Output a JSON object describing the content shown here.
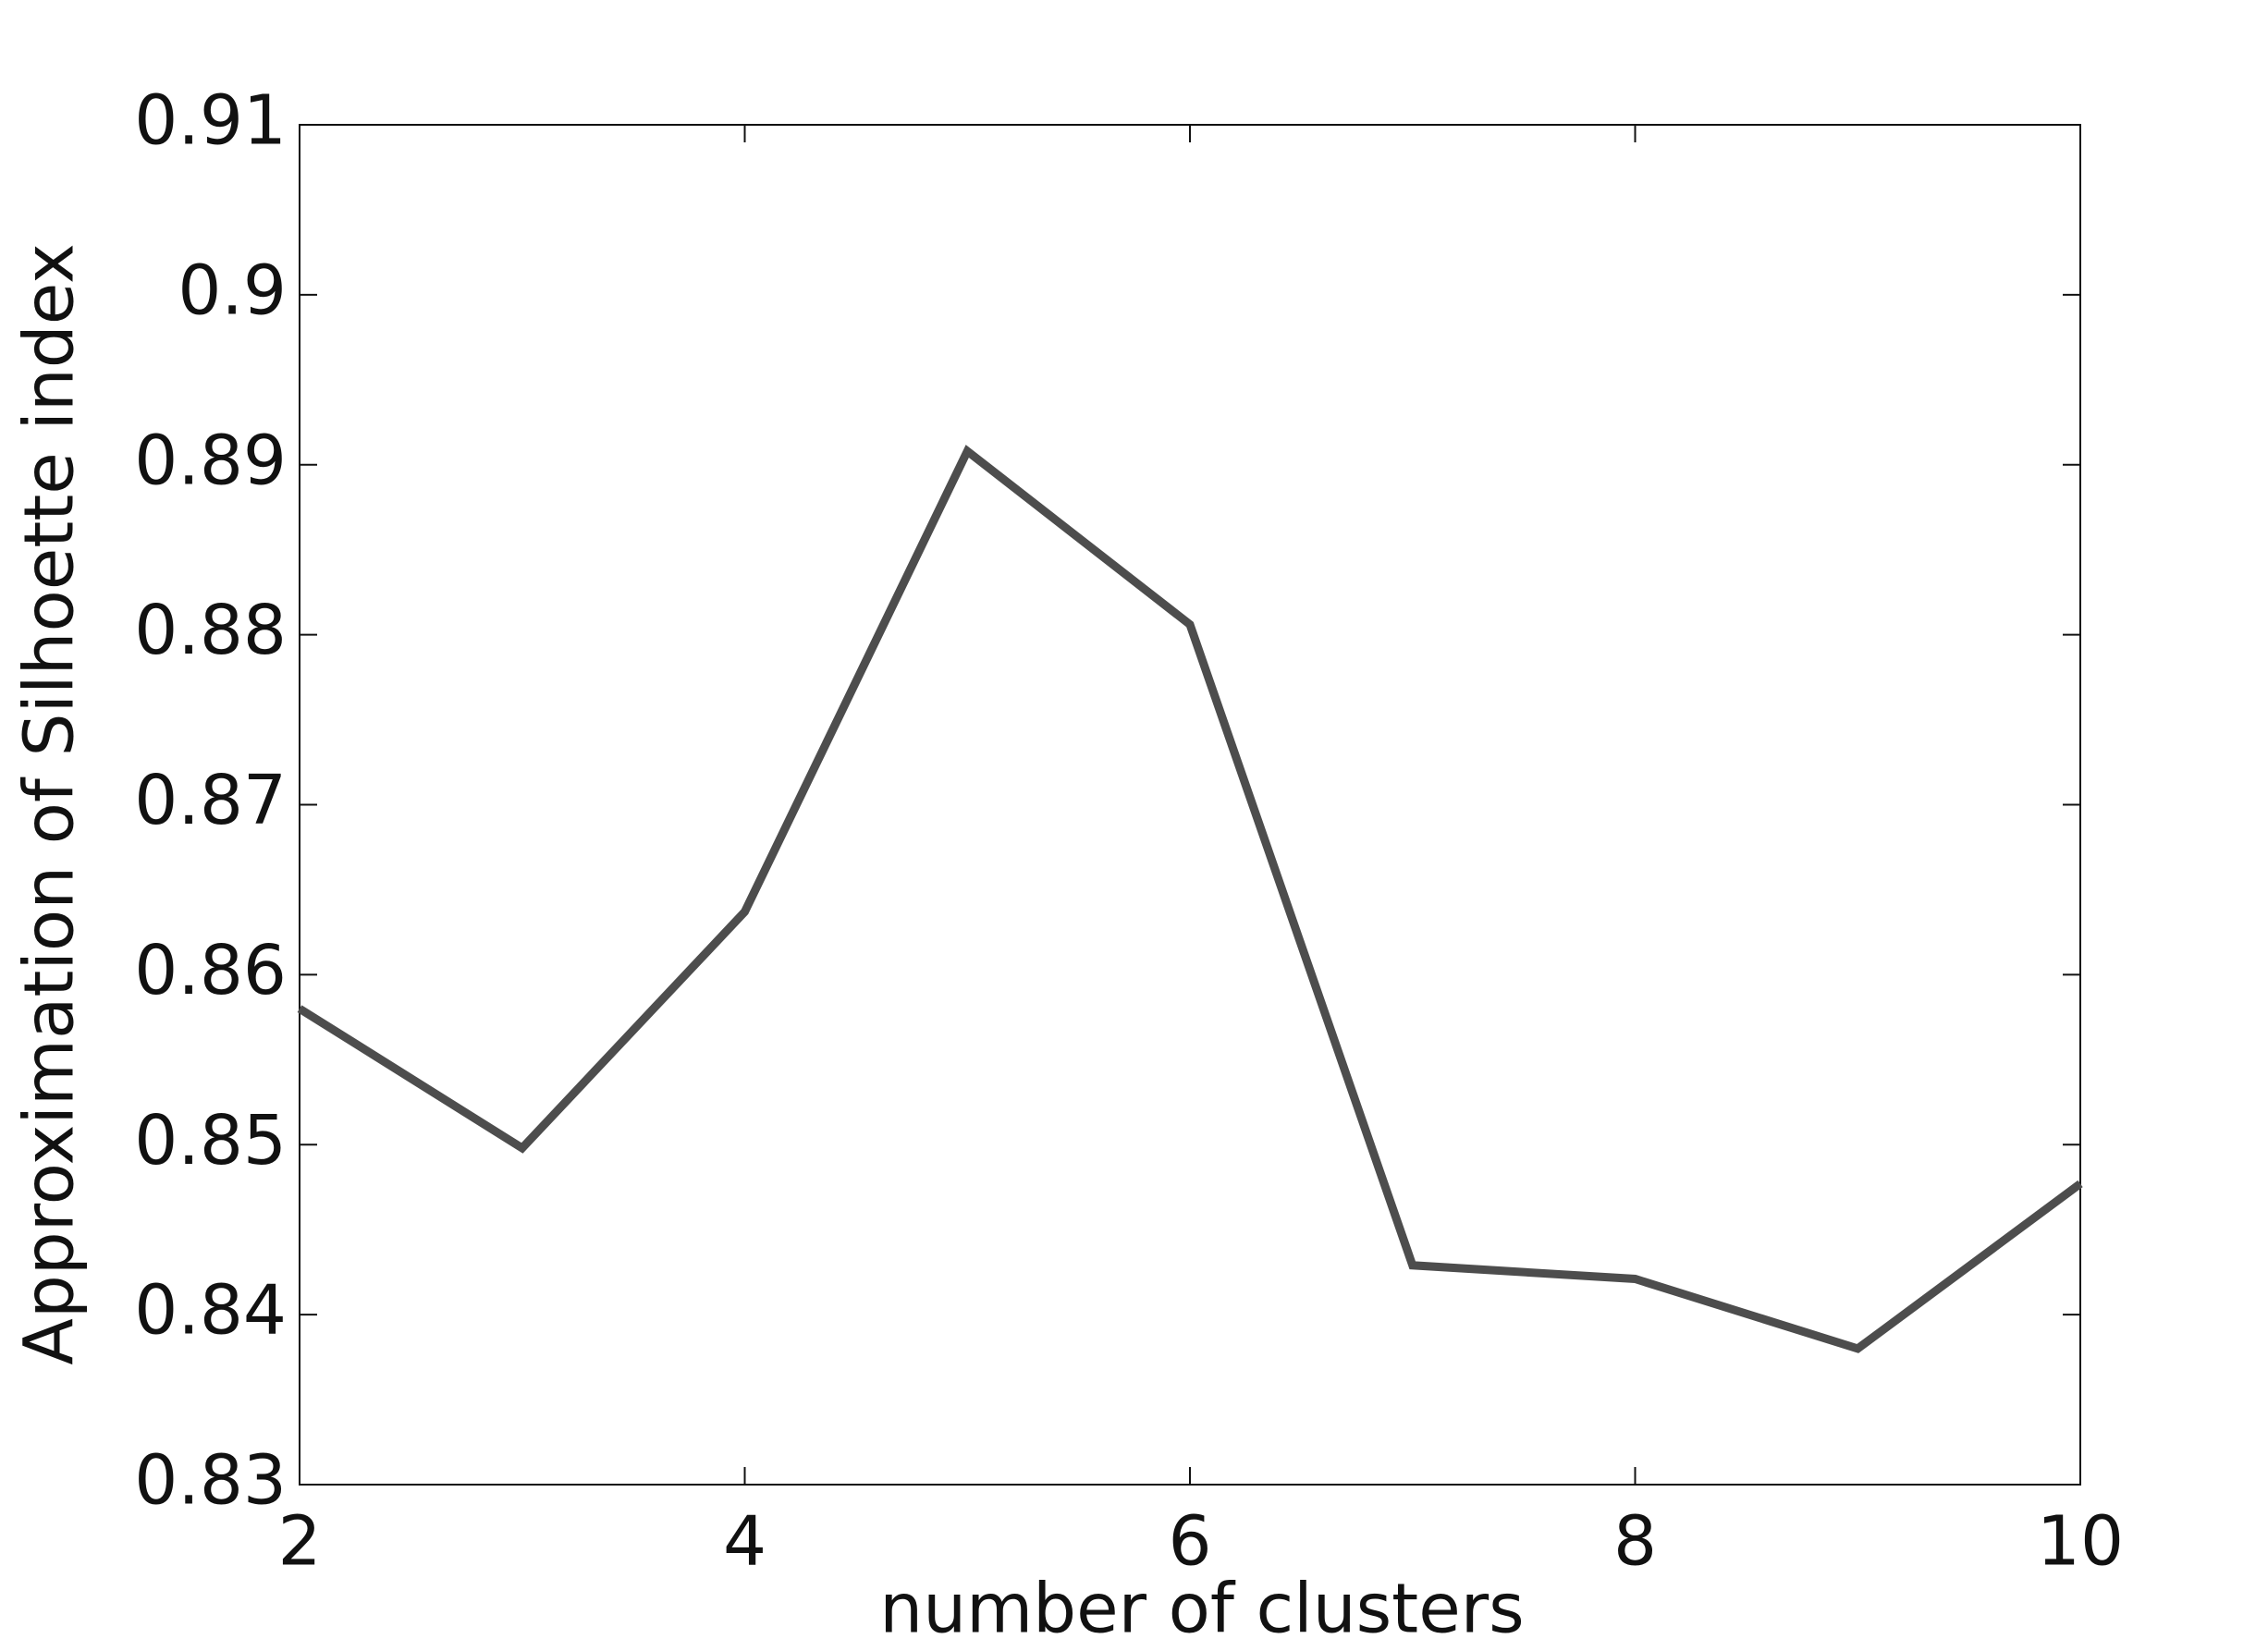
{
  "chart_data": {
    "type": "line",
    "xlabel": "number of clusters",
    "ylabel": "Approximation of Silhoette index",
    "x": [
      2,
      3,
      4,
      5,
      6,
      7,
      8,
      9,
      10
    ],
    "series": [
      {
        "color": "#4d4d4d",
        "values": [
          0.858,
          0.8498,
          0.8637,
          0.8908,
          0.8806,
          0.8429,
          0.8421,
          0.838,
          0.8477
        ]
      }
    ],
    "xlim": [
      2,
      10
    ],
    "xticks": [
      2,
      4,
      6,
      8,
      10
    ],
    "ylim": [
      0.83,
      0.91
    ],
    "yticks": [
      0.83,
      0.84,
      0.85,
      0.86,
      0.87,
      0.88,
      0.89,
      0.9,
      0.91
    ]
  }
}
